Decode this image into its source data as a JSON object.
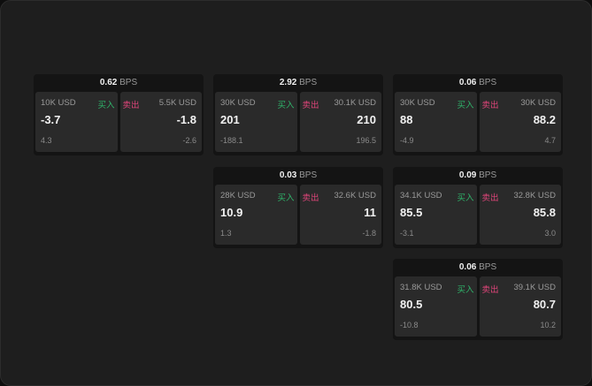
{
  "colors": {
    "buy": "#2fb36a",
    "sell": "#e0457a"
  },
  "labels": {
    "buy": "买入",
    "sell": "卖出",
    "unit": "BPS"
  },
  "cards": [
    {
      "spread": "0.62",
      "buy": {
        "size": "10K USD",
        "price": "-3.7",
        "change": "4.3"
      },
      "sell": {
        "size": "5.5K USD",
        "price": "-1.8",
        "change": "-2.6"
      }
    },
    {
      "spread": "2.92",
      "buy": {
        "size": "30K USD",
        "price": "201",
        "change": "-188.1"
      },
      "sell": {
        "size": "30.1K USD",
        "price": "210",
        "change": "196.5"
      }
    },
    {
      "spread": "0.06",
      "buy": {
        "size": "30K USD",
        "price": "88",
        "change": "-4.9"
      },
      "sell": {
        "size": "30K USD",
        "price": "88.2",
        "change": "4.7"
      }
    },
    {
      "spread": "0.03",
      "buy": {
        "size": "28K USD",
        "price": "10.9",
        "change": "1.3"
      },
      "sell": {
        "size": "32.6K USD",
        "price": "11",
        "change": "-1.8"
      }
    },
    {
      "spread": "0.09",
      "buy": {
        "size": "34.1K USD",
        "price": "85.5",
        "change": "-3.1"
      },
      "sell": {
        "size": "32.8K USD",
        "price": "85.8",
        "change": "3.0"
      }
    },
    {
      "spread": "0.06",
      "buy": {
        "size": "31.8K USD",
        "price": "80.5",
        "change": "-10.8"
      },
      "sell": {
        "size": "39.1K USD",
        "price": "80.7",
        "change": "10.2"
      }
    }
  ]
}
